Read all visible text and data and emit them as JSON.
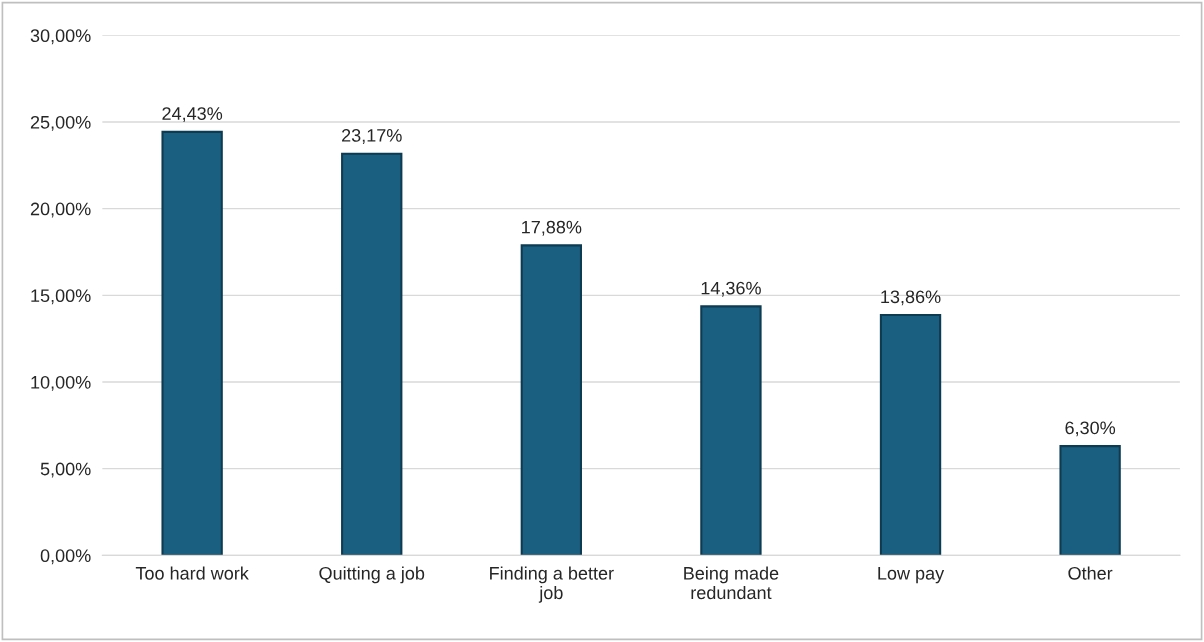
{
  "chart_data": {
    "type": "bar",
    "categories": [
      "Too hard work",
      "Quitting a job",
      "Finding a better job",
      "Being made redundant",
      "Low pay",
      "Other"
    ],
    "values": [
      24.43,
      23.17,
      17.88,
      14.36,
      13.86,
      6.3
    ],
    "value_labels": [
      "24,43%",
      "23,17%",
      "17,88%",
      "14,36%",
      "13,86%",
      "6,30%"
    ],
    "color": "#1b5f80",
    "ylim": [
      0,
      30
    ],
    "yticks": [
      {
        "value": 0,
        "label": "0,00%"
      },
      {
        "value": 5,
        "label": "5,00%"
      },
      {
        "value": 10,
        "label": "10,00%"
      },
      {
        "value": 15,
        "label": "15,00%"
      },
      {
        "value": 20,
        "label": "20,00%"
      },
      {
        "value": 25,
        "label": "25,00%"
      },
      {
        "value": 30,
        "label": "30,00%"
      }
    ],
    "grid": "y"
  }
}
